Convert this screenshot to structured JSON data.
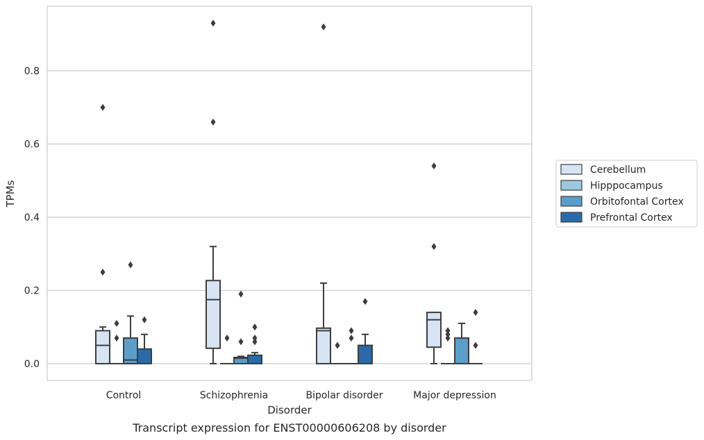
{
  "chart_data": {
    "type": "box",
    "caption": "Transcript expression for ENST00000606208 by disorder",
    "xlabel": "Disorder",
    "ylabel": "TPMs",
    "ylim": [
      -0.045,
      0.98
    ],
    "yticks": [
      "0.0",
      "0.2",
      "0.4",
      "0.6",
      "0.8"
    ],
    "ytick_values": [
      0.0,
      0.2,
      0.4,
      0.6,
      0.8
    ],
    "grid": "horizontal",
    "legend_placement": "center-right",
    "categories": [
      "Control",
      "Schizophrenia",
      "Bipolar disorder",
      "Major depression"
    ],
    "series": [
      {
        "name": "Cerebellum",
        "color": "#d6e4f3",
        "boxes": [
          {
            "whislo": 0.0,
            "q1": 0.0,
            "med": 0.05,
            "q3": 0.09,
            "whishi": 0.1,
            "fliers": [
              0.25,
              0.7
            ]
          },
          {
            "whislo": 0.0,
            "q1": 0.042,
            "med": 0.175,
            "q3": 0.227,
            "whishi": 0.32,
            "fliers": [
              0.66,
              0.93
            ]
          },
          {
            "whislo": 0.0,
            "q1": 0.0,
            "med": 0.09,
            "q3": 0.097,
            "whishi": 0.22,
            "fliers": [
              0.92
            ]
          },
          {
            "whislo": 0.0,
            "q1": 0.045,
            "med": 0.12,
            "q3": 0.14,
            "whishi": 0.14,
            "fliers": [
              0.32,
              0.54
            ]
          }
        ]
      },
      {
        "name": "Hipppocampus",
        "color": "#9ac8e0",
        "boxes": [
          {
            "whislo": 0.0,
            "q1": 0.0,
            "med": 0.0,
            "q3": 0.0,
            "whishi": 0.0,
            "fliers": [
              0.07,
              0.11
            ]
          },
          {
            "whislo": 0.0,
            "q1": 0.0,
            "med": 0.0,
            "q3": 0.0,
            "whishi": 0.0,
            "fliers": [
              0.07
            ]
          },
          {
            "whislo": 0.0,
            "q1": 0.0,
            "med": 0.0,
            "q3": 0.0,
            "whishi": 0.0,
            "fliers": [
              0.05
            ]
          },
          {
            "whislo": 0.0,
            "q1": 0.0,
            "med": 0.0,
            "q3": 0.0,
            "whishi": 0.0,
            "fliers": [
              0.07,
              0.08,
              0.09
            ]
          }
        ]
      },
      {
        "name": "Orbitofontal Cortex",
        "color": "#5a9ec9",
        "boxes": [
          {
            "whislo": 0.0,
            "q1": 0.0,
            "med": 0.01,
            "q3": 0.07,
            "whishi": 0.13,
            "fliers": [
              0.27
            ]
          },
          {
            "whislo": 0.0,
            "q1": 0.0,
            "med": 0.015,
            "q3": 0.017,
            "whishi": 0.02,
            "fliers": [
              0.06,
              0.19
            ]
          },
          {
            "whislo": 0.0,
            "q1": 0.0,
            "med": 0.0,
            "q3": 0.0,
            "whishi": 0.0,
            "fliers": [
              0.07,
              0.09
            ]
          },
          {
            "whislo": 0.0,
            "q1": 0.0,
            "med": 0.0,
            "q3": 0.07,
            "whishi": 0.11,
            "fliers": []
          }
        ]
      },
      {
        "name": "Prefrontal Cortex",
        "color": "#2a6aa9",
        "boxes": [
          {
            "whislo": 0.0,
            "q1": 0.0,
            "med": 0.0,
            "q3": 0.04,
            "whishi": 0.08,
            "fliers": [
              0.12
            ]
          },
          {
            "whislo": 0.0,
            "q1": 0.0,
            "med": 0.0,
            "q3": 0.023,
            "whishi": 0.03,
            "fliers": [
              0.06,
              0.07,
              0.1
            ]
          },
          {
            "whislo": 0.0,
            "q1": 0.0,
            "med": 0.0,
            "q3": 0.05,
            "whishi": 0.08,
            "fliers": [
              0.17
            ]
          },
          {
            "whislo": 0.0,
            "q1": 0.0,
            "med": 0.0,
            "q3": 0.0,
            "whishi": 0.0,
            "fliers": [
              0.05,
              0.14
            ]
          }
        ]
      }
    ]
  }
}
